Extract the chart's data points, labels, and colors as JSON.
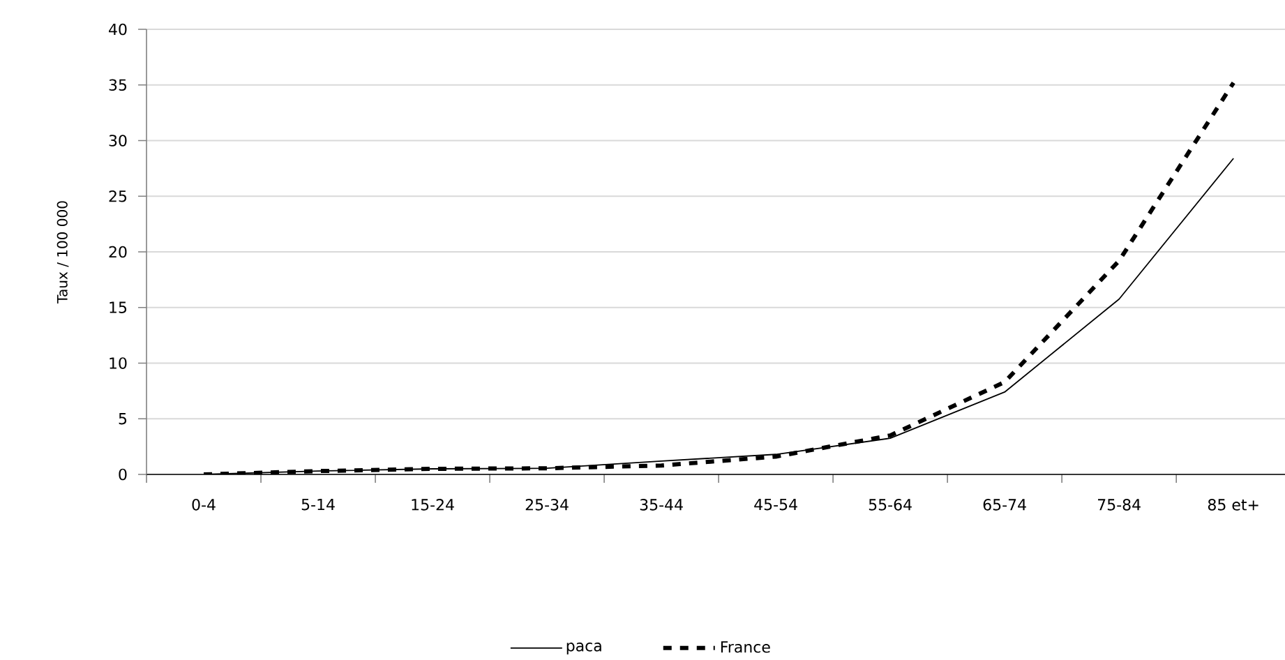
{
  "chart_data": {
    "type": "line",
    "ylabel": "Taux / 100 000",
    "categories": [
      "0-4",
      "5-14",
      "15-24",
      "25-34",
      "35-44",
      "45-54",
      "55-64",
      "65-74",
      "75-84",
      "85 et+"
    ],
    "series": [
      {
        "name": "paca",
        "color": "#000000",
        "line_style": "solid",
        "values": [
          0,
          0.3,
          0.5,
          0.55,
          1.2,
          1.8,
          3.25,
          7.4,
          15.75,
          28.4
        ]
      },
      {
        "name": "France",
        "color": "#000000",
        "line_style": "dashed",
        "values": [
          0,
          0.3,
          0.5,
          0.55,
          0.8,
          1.6,
          3.5,
          8.3,
          19.2,
          35.2
        ]
      }
    ],
    "ylim": [
      0,
      40
    ],
    "yticks": [
      0,
      5,
      10,
      15,
      20,
      25,
      30,
      35,
      40
    ],
    "grid": "y",
    "legend": "bottom",
    "marker": "none"
  }
}
